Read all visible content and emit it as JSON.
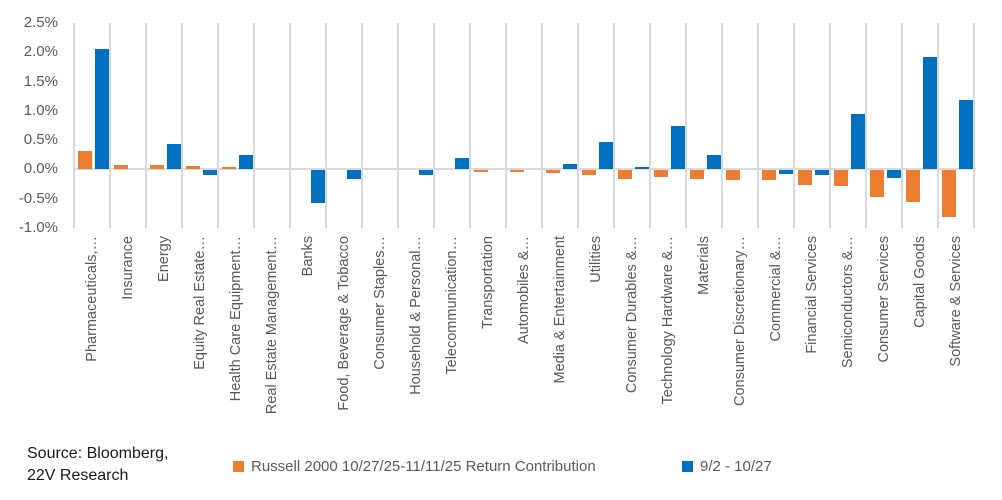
{
  "chart_data": {
    "type": "bar",
    "title": "",
    "categories": [
      "Pharmaceuticals,…",
      "Insurance",
      "Energy",
      "Equity Real Estate…",
      "Health Care Equipment…",
      "Real Estate Management…",
      "Banks",
      "Food, Beverage & Tobacco",
      "Consumer Staples…",
      "Household & Personal…",
      "Telecommunication…",
      "Transportation",
      "Automobiles &…",
      "Media & Entertainment",
      "Utilities",
      "Consumer Durables &…",
      "Technology Hardware &…",
      "Materials",
      "Consumer Discretionary…",
      "Commercial &…",
      "Financial Services",
      "Semiconductors &…",
      "Consumer Services",
      "Capital Goods",
      "Software & Services"
    ],
    "series": [
      {
        "name": "Russell 2000 10/27/25-11/11/25 Return Contribution",
        "color": "#ED7D31",
        "values": [
          0.31,
          0.08,
          0.08,
          0.06,
          0.04,
          0,
          0,
          0,
          0,
          0,
          0,
          -0.03,
          -0.03,
          -0.05,
          -0.08,
          -0.15,
          -0.12,
          -0.14,
          -0.17,
          -0.16,
          -0.25,
          -0.27,
          -0.45,
          -0.54,
          -0.8
        ]
      },
      {
        "name": "9/2 - 10/27",
        "color": "#0070C0",
        "values": [
          2.05,
          0,
          0.44,
          -0.08,
          0.24,
          0,
          -0.55,
          -0.15,
          0,
          -0.07,
          0.2,
          0,
          0,
          0.09,
          0.47,
          0.04,
          0.75,
          0.24,
          0,
          -0.06,
          -0.07,
          0.94,
          -0.13,
          1.92,
          1.18
        ]
      }
    ],
    "y_axis": {
      "min": -1.0,
      "max": 2.5,
      "step": 0.5,
      "tick_labels": [
        "2.5%",
        "2.0%",
        "1.5%",
        "1.0%",
        "0.5%",
        "0.0%",
        "-0.5%",
        "-1.0%"
      ],
      "unit": "percent"
    },
    "grid": "vertical-category-separators",
    "legend_position": "bottom"
  },
  "source_note": {
    "line1": "Source: Bloomberg,",
    "line2": "22V Research"
  },
  "colors": {
    "series_russell": "#ED7D31",
    "series_benchmark": "#0070C0",
    "gridline": "#D9D9D9",
    "axis_text": "#595959",
    "source_text": "#1A1A1A",
    "background": "#FFFFFF"
  }
}
